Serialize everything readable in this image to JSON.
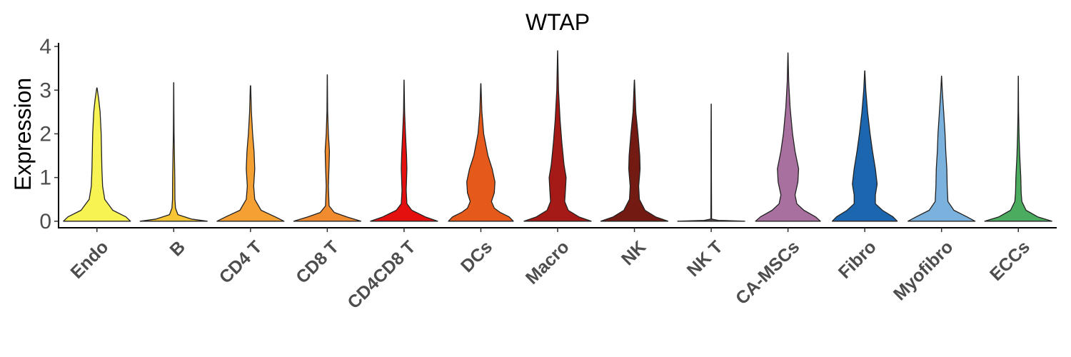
{
  "chart_data": {
    "type": "violin",
    "title": "WTAP",
    "xlabel": "",
    "ylabel": "Expression",
    "ylim": [
      -0.15,
      4.05
    ],
    "yticks": [
      0,
      1,
      2,
      3,
      4
    ],
    "grid": false,
    "legend": "none",
    "categories": [
      "Endo",
      "B",
      "CD4 T",
      "CD8 T",
      "CD4CD8 T",
      "DCs",
      "Macro",
      "NK",
      "NK T",
      "CA-MSCs",
      "Fibro",
      "Myofibro",
      "ECCs"
    ],
    "series": [
      {
        "category": "Endo",
        "color": "#f7f353",
        "max": 3.05,
        "profile": [
          [
            0,
            0.95
          ],
          [
            0.1,
            0.82
          ],
          [
            0.25,
            0.45
          ],
          [
            0.5,
            0.22
          ],
          [
            0.8,
            0.16
          ],
          [
            1.2,
            0.14
          ],
          [
            1.6,
            0.13
          ],
          [
            2.0,
            0.12
          ],
          [
            2.5,
            0.09
          ],
          [
            2.8,
            0.05
          ],
          [
            3.05,
            0.005
          ]
        ]
      },
      {
        "category": "B",
        "color": "#f7c535",
        "max": 3.17,
        "profile": [
          [
            0,
            0.95
          ],
          [
            0.05,
            0.5
          ],
          [
            0.15,
            0.12
          ],
          [
            0.3,
            0.05
          ],
          [
            0.5,
            0.035
          ],
          [
            1.0,
            0.03
          ],
          [
            1.5,
            0.02
          ],
          [
            2.0,
            0.01
          ],
          [
            2.5,
            0.006
          ],
          [
            3.17,
            0.002
          ]
        ]
      },
      {
        "category": "CD4 T",
        "color": "#f5a033",
        "max": 3.1,
        "profile": [
          [
            0,
            0.95
          ],
          [
            0.1,
            0.7
          ],
          [
            0.25,
            0.3
          ],
          [
            0.5,
            0.12
          ],
          [
            0.8,
            0.09
          ],
          [
            1.2,
            0.12
          ],
          [
            1.6,
            0.1
          ],
          [
            2.0,
            0.06
          ],
          [
            2.5,
            0.025
          ],
          [
            3.1,
            0.005
          ]
        ]
      },
      {
        "category": "CD8 T",
        "color": "#f18b2f",
        "max": 3.35,
        "profile": [
          [
            0,
            0.95
          ],
          [
            0.1,
            0.55
          ],
          [
            0.2,
            0.2
          ],
          [
            0.35,
            0.05
          ],
          [
            0.8,
            0.03
          ],
          [
            1.3,
            0.05
          ],
          [
            1.6,
            0.06
          ],
          [
            2.0,
            0.03
          ],
          [
            2.5,
            0.01
          ],
          [
            3.35,
            0.002
          ]
        ]
      },
      {
        "category": "CD4CD8 T",
        "color": "#e3100f",
        "max": 3.23,
        "profile": [
          [
            0,
            0.95
          ],
          [
            0.1,
            0.6
          ],
          [
            0.25,
            0.22
          ],
          [
            0.4,
            0.08
          ],
          [
            0.7,
            0.06
          ],
          [
            1.2,
            0.08
          ],
          [
            1.5,
            0.07
          ],
          [
            2.0,
            0.04
          ],
          [
            2.5,
            0.015
          ],
          [
            3.23,
            0.002
          ]
        ]
      },
      {
        "category": "DCs",
        "color": "#e55a1b",
        "max": 3.15,
        "profile": [
          [
            0,
            0.92
          ],
          [
            0.1,
            0.8
          ],
          [
            0.2,
            0.55
          ],
          [
            0.3,
            0.38
          ],
          [
            0.45,
            0.3
          ],
          [
            0.65,
            0.38
          ],
          [
            0.9,
            0.4
          ],
          [
            1.2,
            0.32
          ],
          [
            1.5,
            0.2
          ],
          [
            2.0,
            0.08
          ],
          [
            2.5,
            0.03
          ],
          [
            3.15,
            0.003
          ]
        ]
      },
      {
        "category": "Macro",
        "color": "#a51a16",
        "max": 3.9,
        "profile": [
          [
            0,
            0.95
          ],
          [
            0.1,
            0.6
          ],
          [
            0.25,
            0.3
          ],
          [
            0.45,
            0.2
          ],
          [
            0.7,
            0.22
          ],
          [
            1.0,
            0.24
          ],
          [
            1.3,
            0.18
          ],
          [
            1.8,
            0.12
          ],
          [
            2.3,
            0.07
          ],
          [
            3.0,
            0.025
          ],
          [
            3.9,
            0.002
          ]
        ]
      },
      {
        "category": "NK",
        "color": "#731a12",
        "max": 3.23,
        "profile": [
          [
            0,
            0.95
          ],
          [
            0.1,
            0.6
          ],
          [
            0.25,
            0.3
          ],
          [
            0.5,
            0.14
          ],
          [
            0.8,
            0.12
          ],
          [
            1.2,
            0.16
          ],
          [
            1.5,
            0.15
          ],
          [
            2.0,
            0.1
          ],
          [
            2.5,
            0.04
          ],
          [
            3.23,
            0.003
          ]
        ]
      },
      {
        "category": "NK T",
        "color": "#5a4f4f",
        "max": 2.68,
        "profile": [
          [
            0,
            0.95
          ],
          [
            0.02,
            0.2
          ],
          [
            0.05,
            0.01
          ],
          [
            1.0,
            0.006
          ],
          [
            2.0,
            0.005
          ],
          [
            2.68,
            0.002
          ]
        ]
      },
      {
        "category": "CA-MSCs",
        "color": "#a8709f",
        "max": 3.85,
        "profile": [
          [
            0,
            0.92
          ],
          [
            0.1,
            0.78
          ],
          [
            0.25,
            0.45
          ],
          [
            0.4,
            0.25
          ],
          [
            0.6,
            0.2
          ],
          [
            0.9,
            0.28
          ],
          [
            1.2,
            0.3
          ],
          [
            1.6,
            0.2
          ],
          [
            2.0,
            0.13
          ],
          [
            2.6,
            0.06
          ],
          [
            3.2,
            0.02
          ],
          [
            3.85,
            0.002
          ]
        ]
      },
      {
        "category": "Fibro",
        "color": "#1c66b0",
        "max": 3.44,
        "profile": [
          [
            0,
            0.92
          ],
          [
            0.1,
            0.8
          ],
          [
            0.25,
            0.5
          ],
          [
            0.4,
            0.3
          ],
          [
            0.6,
            0.3
          ],
          [
            0.85,
            0.35
          ],
          [
            1.2,
            0.3
          ],
          [
            1.6,
            0.22
          ],
          [
            2.0,
            0.15
          ],
          [
            2.5,
            0.08
          ],
          [
            3.0,
            0.03
          ],
          [
            3.44,
            0.003
          ]
        ]
      },
      {
        "category": "Myofibro",
        "color": "#7bb1dd",
        "max": 3.32,
        "profile": [
          [
            0,
            0.95
          ],
          [
            0.1,
            0.72
          ],
          [
            0.25,
            0.35
          ],
          [
            0.45,
            0.18
          ],
          [
            0.8,
            0.16
          ],
          [
            1.2,
            0.15
          ],
          [
            1.6,
            0.12
          ],
          [
            2.0,
            0.1
          ],
          [
            2.5,
            0.06
          ],
          [
            3.0,
            0.02
          ],
          [
            3.32,
            0.002
          ]
        ]
      },
      {
        "category": "ECCs",
        "color": "#4bab5e",
        "max": 3.32,
        "profile": [
          [
            0,
            0.95
          ],
          [
            0.1,
            0.55
          ],
          [
            0.25,
            0.22
          ],
          [
            0.45,
            0.1
          ],
          [
            0.65,
            0.08
          ],
          [
            1.0,
            0.07
          ],
          [
            1.5,
            0.04
          ],
          [
            2.0,
            0.02
          ],
          [
            2.5,
            0.008
          ],
          [
            3.32,
            0.002
          ]
        ]
      }
    ]
  }
}
